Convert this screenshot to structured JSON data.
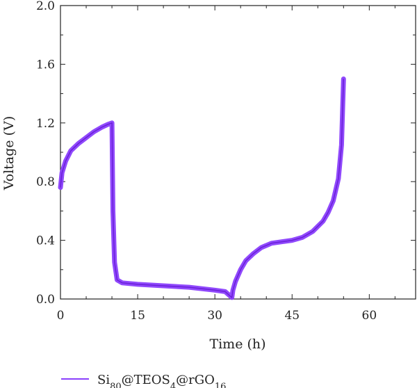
{
  "chart_data": {
    "type": "line",
    "title": "",
    "xlabel": "Time (h)",
    "ylabel": "Voltage (V)",
    "xlim": [
      0,
      69
    ],
    "ylim": [
      0,
      2.0
    ],
    "x_ticks": [
      "0",
      "15",
      "30",
      "45",
      "60"
    ],
    "y_ticks": [
      "0.0",
      "0.4",
      "0.8",
      "1.2",
      "1.6",
      "2.0"
    ],
    "grid": false,
    "legend_position": "bottom-left, below plot",
    "series": [
      {
        "name": "Si80@TEOS4@rGO16",
        "legend_parts": {
          "base": "Si",
          "sub1": "80",
          "mid1": "@TEOS",
          "sub2": "4",
          "mid2": "@rGO",
          "sub3": "16"
        },
        "color": "#8a3ffc",
        "x": [
          0.0,
          0.3,
          1.0,
          2.0,
          3.5,
          5.0,
          6.5,
          8.0,
          9.2,
          10.0,
          10.2,
          10.5,
          11.0,
          12.0,
          15.0,
          20.0,
          25.0,
          30.0,
          32.0,
          33.3,
          33.5,
          34.0,
          35.0,
          36.0,
          37.5,
          39.0,
          41.0,
          43.0,
          45.0,
          47.0,
          49.0,
          51.0,
          52.0,
          53.0,
          54.0,
          54.6,
          55.0
        ],
        "values": [
          0.76,
          0.86,
          0.94,
          1.01,
          1.06,
          1.1,
          1.14,
          1.17,
          1.19,
          1.2,
          0.6,
          0.25,
          0.13,
          0.11,
          0.1,
          0.09,
          0.08,
          0.06,
          0.05,
          0.01,
          0.06,
          0.12,
          0.2,
          0.26,
          0.31,
          0.35,
          0.38,
          0.39,
          0.4,
          0.42,
          0.46,
          0.53,
          0.59,
          0.67,
          0.82,
          1.05,
          1.5
        ]
      }
    ]
  }
}
